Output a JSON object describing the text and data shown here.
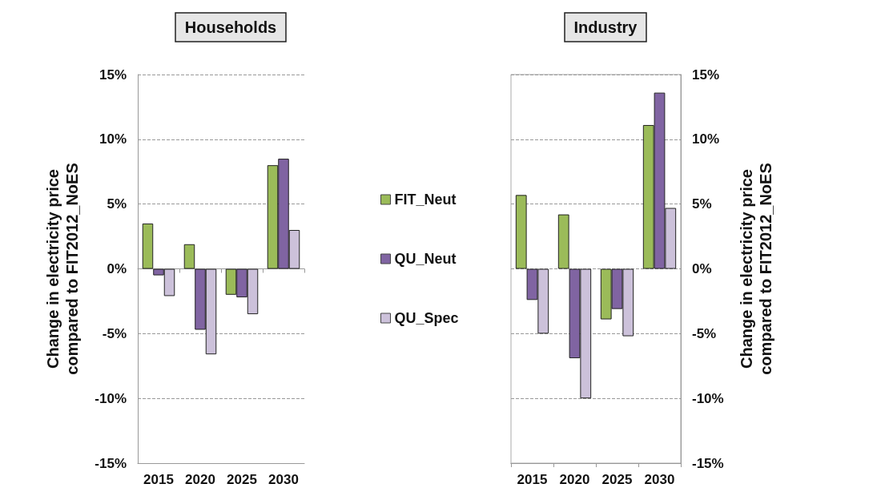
{
  "chart_data": [
    {
      "type": "bar",
      "title": "Households",
      "ylabel": "Change in electricity price\ncompared to FIT2012_NoES",
      "categories": [
        "2015",
        "2020",
        "2025",
        "2030"
      ],
      "series": [
        {
          "name": "FIT_Neut",
          "color": "#9bbb59",
          "values": [
            3.5,
            1.9,
            -2.0,
            8.0
          ]
        },
        {
          "name": "QU_Neut",
          "color": "#8064a2",
          "values": [
            -0.5,
            -4.7,
            -2.2,
            8.5
          ]
        },
        {
          "name": "QU_Spec",
          "color": "#ccc1da",
          "values": [
            -2.1,
            -6.6,
            -3.5,
            3.0
          ]
        }
      ],
      "ylim": [
        -15,
        15
      ],
      "yticks": [
        {
          "value": -15,
          "label": "-15%"
        },
        {
          "value": -10,
          "label": "-10%"
        },
        {
          "value": -5,
          "label": "-5%"
        },
        {
          "value": 0,
          "label": "0%"
        },
        {
          "value": 5,
          "label": "5%"
        },
        {
          "value": 10,
          "label": "10%"
        },
        {
          "value": 15,
          "label": "15%"
        }
      ],
      "grid": "y",
      "legend": "right"
    },
    {
      "type": "bar",
      "title": "Industry",
      "y2label": "Change in electricity price\ncompared to FIT2012_NoES",
      "categories": [
        "2015",
        "2020",
        "2025",
        "2030"
      ],
      "series": [
        {
          "color": "#9bbb59",
          "axis": "y2",
          "values": [
            5.7,
            4.2,
            -3.9,
            11.1
          ]
        },
        {
          "color": "#8064a2",
          "axis": "y2",
          "values": [
            -2.4,
            -6.9,
            -3.1,
            13.6
          ]
        },
        {
          "color": "#ccc1da",
          "axis": "y2",
          "values": [
            -5.0,
            -10.0,
            -5.2,
            4.7
          ]
        }
      ],
      "y2lim": [
        -15,
        15
      ],
      "y2ticks": [
        {
          "value": -15,
          "label": "-15%"
        },
        {
          "value": -10,
          "label": "-10%"
        },
        {
          "value": -5,
          "label": "-5%"
        },
        {
          "value": 0,
          "label": "0%"
        },
        {
          "value": 5,
          "label": "5%"
        },
        {
          "value": 10,
          "label": "10%"
        },
        {
          "value": 15,
          "label": "15%"
        }
      ],
      "grid": "y"
    }
  ]
}
